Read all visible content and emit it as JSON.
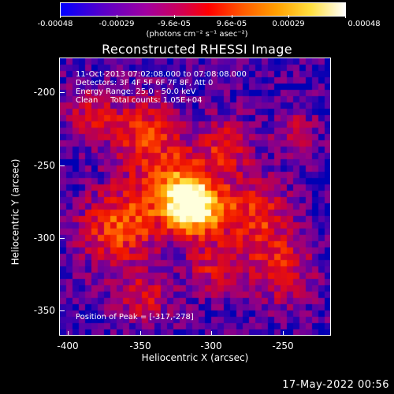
{
  "colorbar": {
    "ticks": [
      "-0.00048",
      "-0.00029",
      "-9.6e-05",
      "9.6e-05",
      "0.00029",
      "0.00048"
    ],
    "units": "(photons cm⁻² s⁻¹ asec⁻²)",
    "colors": [
      "#0000ff",
      "#a000a0",
      "#ff0000",
      "#ffa000",
      "#ffffff"
    ]
  },
  "title": "Reconstructed RHESSI Image",
  "info": {
    "time_range": "11-Oct-2013 07:02:08.000 to 07:08:08.000",
    "detectors": "Detectors: 3F 4F 5F 6F 7F 8F, Att 0",
    "energy": "Energy Range: 25.0 - 50.0 keV",
    "clean": "Clean     Total counts: 1.05E+04"
  },
  "peak_label": "Position of Peak = [-317,-278]",
  "axes": {
    "xlabel": "Heliocentric X (arcsec)",
    "ylabel": "Heliocentric Y (arcsec)",
    "xticks": [
      "-400",
      "-350",
      "-300",
      "-250"
    ],
    "yticks": [
      "-200",
      "-250",
      "-300",
      "-350"
    ]
  },
  "datestamp": "17-May-2022 00:56"
}
